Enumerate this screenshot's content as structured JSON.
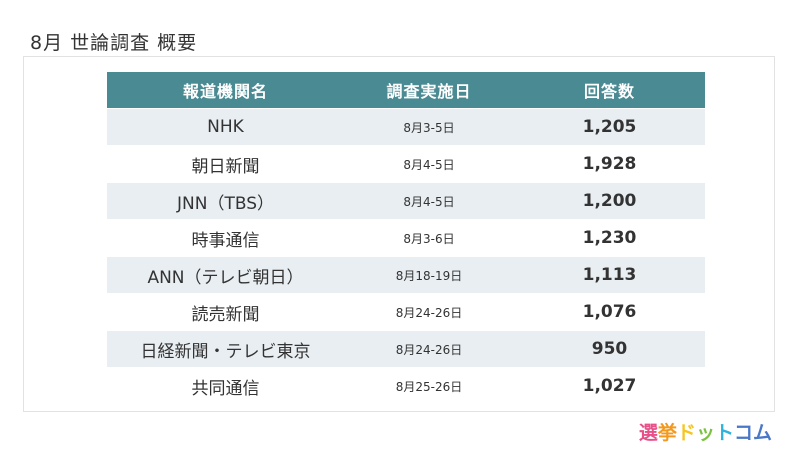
{
  "page_title": "8月 世論調査 概要",
  "table": {
    "headers": [
      "報道機関名",
      "調査実施日",
      "回答数"
    ],
    "rows": [
      {
        "outlet": "NHK",
        "date": "8月3-5日",
        "count": "1,205"
      },
      {
        "outlet": "朝日新聞",
        "date": "8月4-5日",
        "count": "1,928"
      },
      {
        "outlet": "JNN（TBS）",
        "date": "8月4-5日",
        "count": "1,200"
      },
      {
        "outlet": "時事通信",
        "date": "8月3-6日",
        "count": "1,230"
      },
      {
        "outlet": "ANN（テレビ朝日）",
        "date": "8月18-19日",
        "count": "1,113"
      },
      {
        "outlet": "読売新聞",
        "date": "8月24-26日",
        "count": "1,076"
      },
      {
        "outlet": "日経新聞・テレビ東京",
        "date": "8月24-26日",
        "count": "950"
      },
      {
        "outlet": "共同通信",
        "date": "8月25-26日",
        "count": "1,027"
      }
    ]
  },
  "logo": {
    "text": "選挙ドットコム",
    "chars": [
      "選",
      "挙",
      "ド",
      "ッ",
      "ト",
      "コム"
    ]
  },
  "colors": {
    "header_bg": "#4a8a93",
    "row_alt_bg": "#e9eef2"
  }
}
